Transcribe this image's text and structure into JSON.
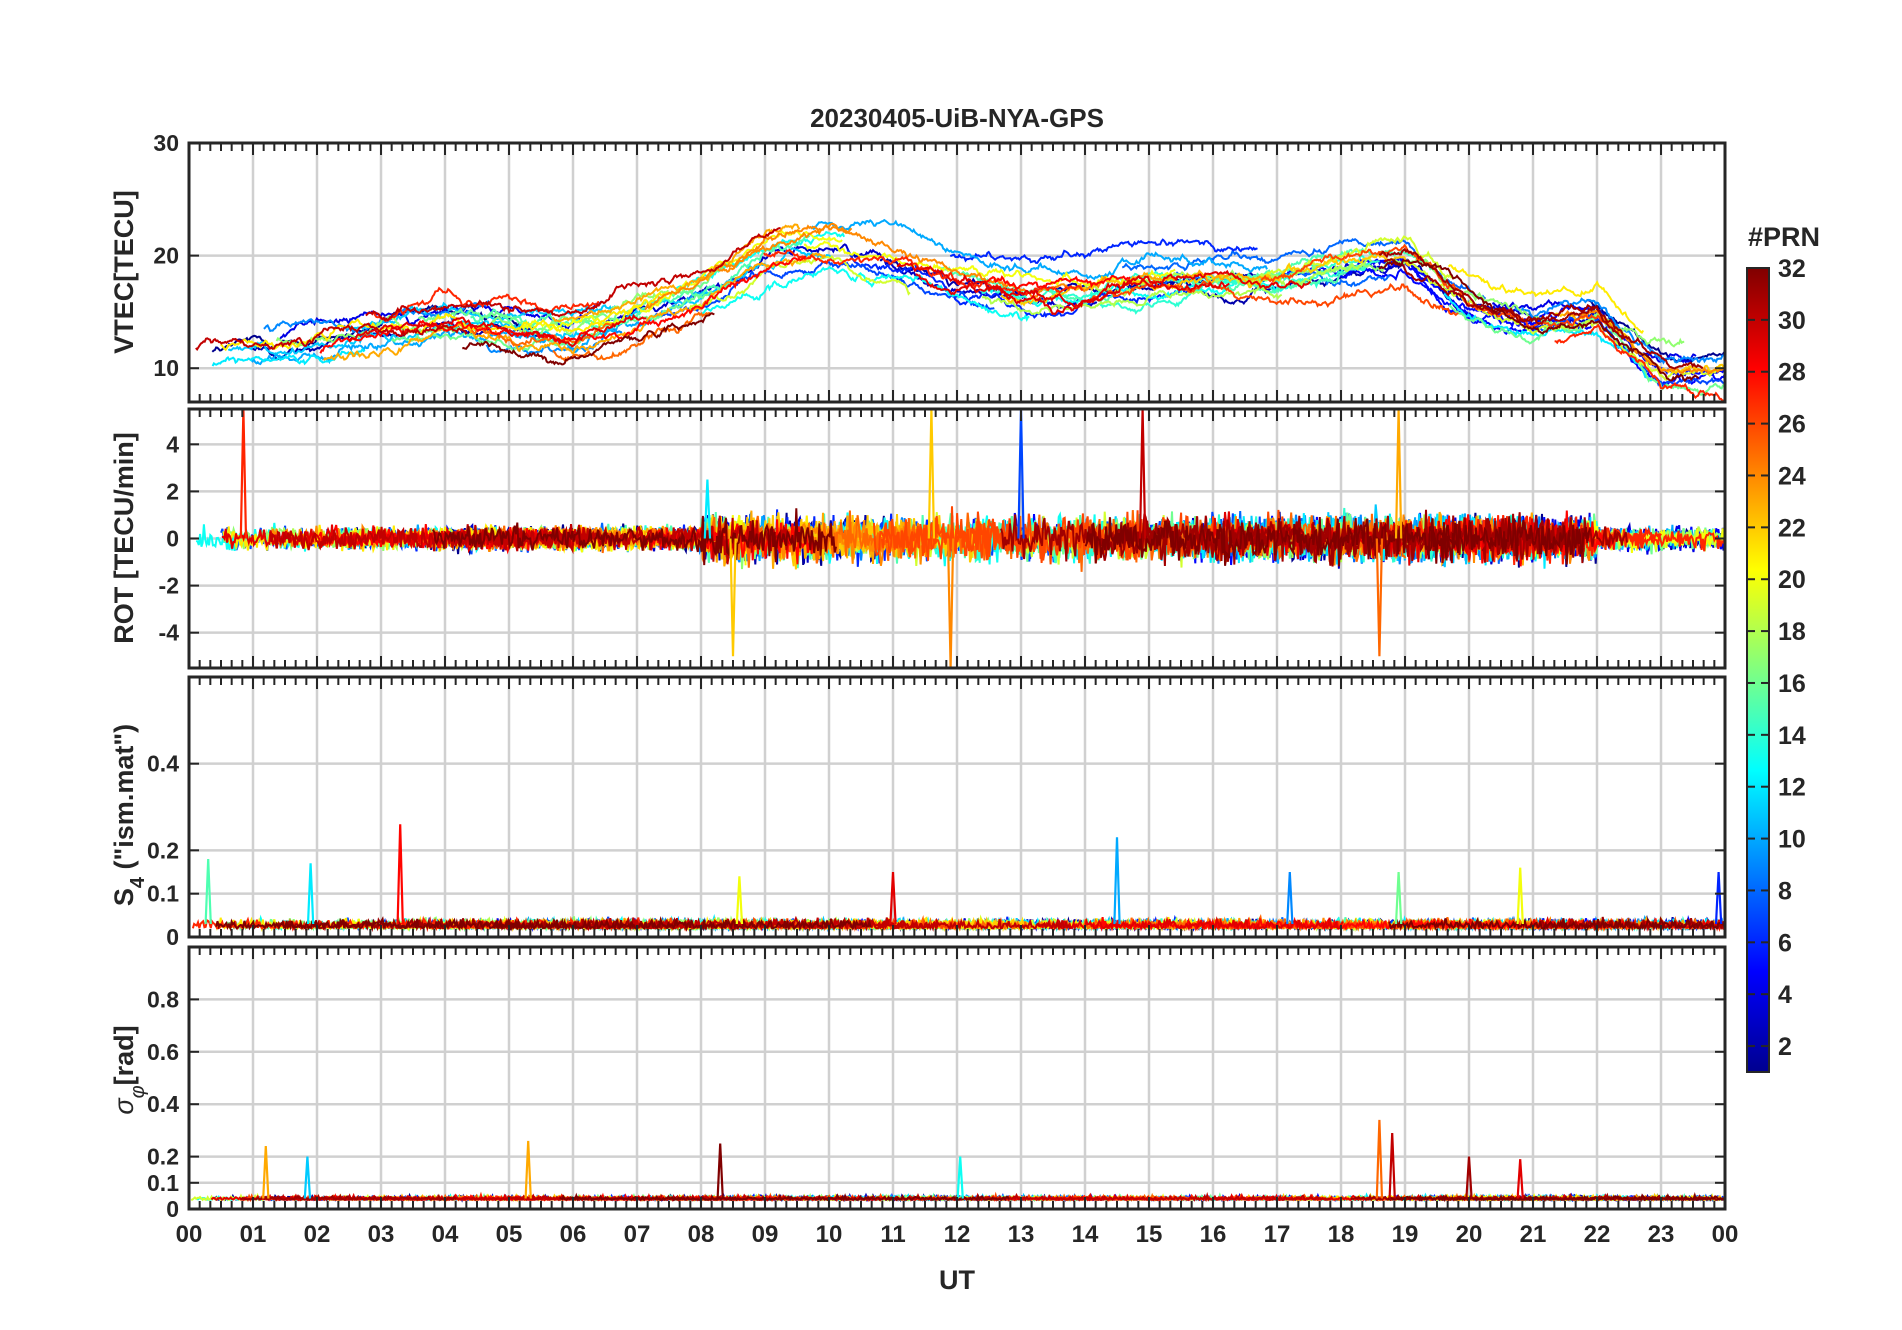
{
  "figure": {
    "title": "20230405-UiB-NYA-GPS",
    "xlabel": "UT",
    "x_ticks": [
      "00",
      "01",
      "02",
      "03",
      "04",
      "05",
      "06",
      "07",
      "08",
      "09",
      "10",
      "11",
      "12",
      "13",
      "14",
      "15",
      "16",
      "17",
      "18",
      "19",
      "20",
      "21",
      "22",
      "23",
      "00"
    ]
  },
  "colorbar": {
    "label": "#PRN",
    "ticks": [
      "2",
      "4",
      "6",
      "8",
      "10",
      "12",
      "14",
      "16",
      "18",
      "20",
      "22",
      "24",
      "26",
      "28",
      "30",
      "32"
    ],
    "range": [
      1,
      32
    ],
    "colors": [
      "#00008f",
      "#0000ff",
      "#0080ff",
      "#00ffff",
      "#80ff80",
      "#ffff00",
      "#ff8000",
      "#ff0000",
      "#800000"
    ]
  },
  "chart_data": [
    {
      "type": "line",
      "panel": "vtec",
      "ylabel": "VTEC[TECU]",
      "xlim": [
        0,
        24
      ],
      "ylim": [
        7,
        30
      ],
      "yticks": [
        "10",
        "20",
        "30"
      ],
      "series_description": "one trace per GPS PRN (1-32), coloured by PRN",
      "typical_range": [
        8,
        26
      ],
      "trend": [
        {
          "x": 0,
          "y": 11
        },
        {
          "x": 2,
          "y": 12
        },
        {
          "x": 4,
          "y": 14
        },
        {
          "x": 6,
          "y": 13
        },
        {
          "x": 8,
          "y": 17
        },
        {
          "x": 9,
          "y": 20
        },
        {
          "x": 10,
          "y": 21
        },
        {
          "x": 11,
          "y": 20
        },
        {
          "x": 12,
          "y": 18
        },
        {
          "x": 13,
          "y": 17
        },
        {
          "x": 14,
          "y": 17
        },
        {
          "x": 15,
          "y": 18
        },
        {
          "x": 16,
          "y": 18
        },
        {
          "x": 17,
          "y": 18
        },
        {
          "x": 18,
          "y": 19
        },
        {
          "x": 19,
          "y": 20
        },
        {
          "x": 20,
          "y": 16
        },
        {
          "x": 21,
          "y": 14
        },
        {
          "x": 22,
          "y": 15
        },
        {
          "x": 23,
          "y": 10
        },
        {
          "x": 24,
          "y": 10
        }
      ]
    },
    {
      "type": "line",
      "panel": "rot",
      "ylabel": "ROT [TECU/min]",
      "xlim": [
        0,
        24
      ],
      "ylim": [
        -5.5,
        5.5
      ],
      "yticks": [
        "-4",
        "-2",
        "0",
        "2",
        "4"
      ],
      "series_description": "rate of TEC per PRN, fluctuating around 0",
      "typical_range": [
        -2,
        2
      ],
      "peaks": [
        {
          "x": 0.85,
          "y": 5.5
        },
        {
          "x": 8.1,
          "y": 2.5
        },
        {
          "x": 8.5,
          "y": -5.0
        },
        {
          "x": 11.6,
          "y": 5.5
        },
        {
          "x": 11.9,
          "y": -5.5
        },
        {
          "x": 13.0,
          "y": 5.5
        },
        {
          "x": 14.9,
          "y": 5.5
        },
        {
          "x": 18.6,
          "y": -5.0
        },
        {
          "x": 18.9,
          "y": 5.5
        }
      ]
    },
    {
      "type": "line",
      "panel": "s4",
      "ylabel": "S_4 (\"ism.mat\")",
      "ylabel_parts": {
        "base": "S",
        "subscript": "4",
        "rest": " (\"ism.mat\")"
      },
      "xlim": [
        0,
        24
      ],
      "ylim": [
        0,
        0.6
      ],
      "yticks": [
        "0",
        "0.1",
        "0.2",
        "0.4"
      ],
      "series_description": "amplitude scintillation index per PRN",
      "typical_range": [
        0,
        0.06
      ],
      "peaks": [
        {
          "x": 0.3,
          "y": 0.18
        },
        {
          "x": 1.9,
          "y": 0.17
        },
        {
          "x": 3.3,
          "y": 0.26
        },
        {
          "x": 8.6,
          "y": 0.14
        },
        {
          "x": 11.0,
          "y": 0.15
        },
        {
          "x": 14.5,
          "y": 0.23
        },
        {
          "x": 17.2,
          "y": 0.15
        },
        {
          "x": 18.9,
          "y": 0.15
        },
        {
          "x": 20.8,
          "y": 0.16
        },
        {
          "x": 23.9,
          "y": 0.15
        }
      ]
    },
    {
      "type": "line",
      "panel": "sigma_phi",
      "ylabel": "σ_φ[rad]",
      "ylabel_parts": {
        "base": "σ",
        "subscript": "φ",
        "rest": "[rad]"
      },
      "xlim": [
        0,
        24
      ],
      "ylim": [
        0,
        1.0
      ],
      "yticks": [
        "0",
        "0.1",
        "0.2",
        "0.4",
        "0.6",
        "0.8"
      ],
      "series_description": "phase scintillation index per PRN",
      "typical_range": [
        0.02,
        0.07
      ],
      "peaks": [
        {
          "x": 1.2,
          "y": 0.24
        },
        {
          "x": 1.85,
          "y": 0.2
        },
        {
          "x": 5.3,
          "y": 0.26
        },
        {
          "x": 8.3,
          "y": 0.25
        },
        {
          "x": 12.05,
          "y": 0.2
        },
        {
          "x": 18.6,
          "y": 0.34
        },
        {
          "x": 18.8,
          "y": 0.29
        },
        {
          "x": 20.0,
          "y": 0.2
        },
        {
          "x": 20.8,
          "y": 0.19
        }
      ]
    }
  ]
}
